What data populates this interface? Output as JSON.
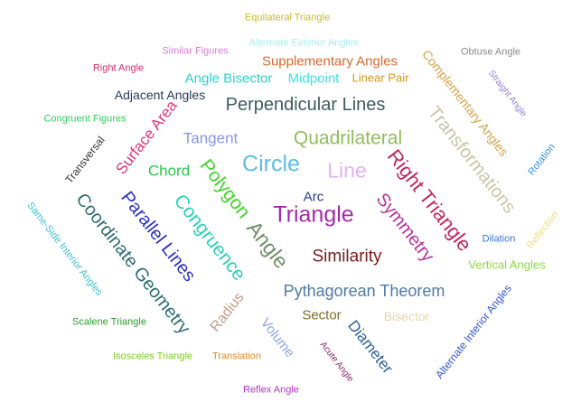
{
  "words": [
    {
      "text": "Equilateral Triangle",
      "color": "#c8bb2a"
    },
    {
      "text": "Alternate Exterior Angles",
      "color": "#a7eef0"
    },
    {
      "text": "Similar Figures",
      "color": "#e17bd8"
    },
    {
      "text": "Obtuse Angle",
      "color": "#8a8a8a"
    },
    {
      "text": "Right Angle",
      "color": "#d62c6b"
    },
    {
      "text": "Supplementary Angles",
      "color": "#d9682e"
    },
    {
      "text": "Angle Bisector",
      "color": "#27d3ce"
    },
    {
      "text": "Midpoint",
      "color": "#38e4e6"
    },
    {
      "text": "Linear Pair",
      "color": "#d99618"
    },
    {
      "text": "Straight Angle",
      "color": "#8f83dc"
    },
    {
      "text": "Complementary Angles",
      "color": "#d4a34a"
    },
    {
      "text": "Adjacent Angles",
      "color": "#283a5a"
    },
    {
      "text": "Perpendicular Lines",
      "color": "#3f5b5e"
    },
    {
      "text": "Congruent Figures",
      "color": "#2fd15d"
    },
    {
      "text": "Surface Area",
      "color": "#e0357c"
    },
    {
      "text": "Tangent",
      "color": "#8b96e4"
    },
    {
      "text": "Quadrilateral",
      "color": "#8fbe5a"
    },
    {
      "text": "Transversal",
      "color": "#333333"
    },
    {
      "text": "Transformations",
      "color": "#c5c5a7"
    },
    {
      "text": "Rotation",
      "color": "#3a8fe0"
    },
    {
      "text": "Chord",
      "color": "#25cb48"
    },
    {
      "text": "Circle",
      "color": "#5dbde4"
    },
    {
      "text": "Line",
      "color": "#e3b3f0"
    },
    {
      "text": "Right Triangle",
      "color": "#c2255a"
    },
    {
      "text": "Polygon",
      "color": "#43d12d"
    },
    {
      "text": "Arc",
      "color": "#2a3a8c"
    },
    {
      "text": "Triangle",
      "color": "#a52aa9"
    },
    {
      "text": "Same-Side Interior Angles",
      "color": "#3ec2d8"
    },
    {
      "text": "Coordinate Geometry",
      "color": "#2c6b72"
    },
    {
      "text": "Parallel Lines",
      "color": "#2b2fc2"
    },
    {
      "text": "Congruence",
      "color": "#2ad1b4"
    },
    {
      "text": "Angle",
      "color": "#6f8e6a"
    },
    {
      "text": "Symmetry",
      "color": "#bb3199"
    },
    {
      "text": "Dilation",
      "color": "#3a73d9"
    },
    {
      "text": "Reflection",
      "color": "#ecdf7a"
    },
    {
      "text": "Similarity",
      "color": "#7a1a1a"
    },
    {
      "text": "Vertical Angles",
      "color": "#8fd846"
    },
    {
      "text": "Pythagorean Theorem",
      "color": "#4d7aa8"
    },
    {
      "text": "Sector",
      "color": "#7d6a27"
    },
    {
      "text": "Bisector",
      "color": "#e8d6a8"
    },
    {
      "text": "Scalene Triangle",
      "color": "#2a9a2a"
    },
    {
      "text": "Radius",
      "color": "#c19e86"
    },
    {
      "text": "Volume",
      "color": "#8ea4ec"
    },
    {
      "text": "Diameter",
      "color": "#2b5e8e"
    },
    {
      "text": "Alternate Interior Angles",
      "color": "#3555d8"
    },
    {
      "text": "Acute Angle",
      "color": "#8a2a6e"
    },
    {
      "text": "Isosceles Triangle",
      "color": "#7ad02a"
    },
    {
      "text": "Translation",
      "color": "#e08c2a"
    },
    {
      "text": "Reflex Angle",
      "color": "#b534c7"
    }
  ]
}
